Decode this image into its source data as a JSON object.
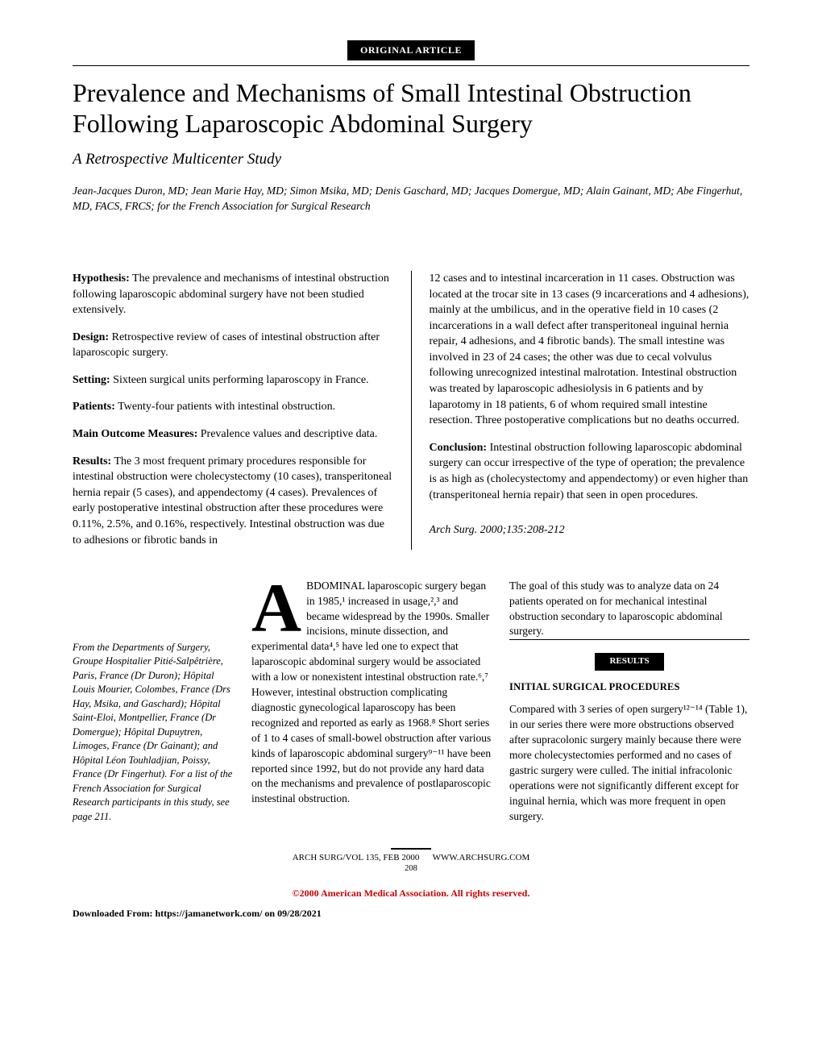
{
  "badges": {
    "section": "ORIGINAL ARTICLE",
    "results": "RESULTS"
  },
  "title": "Prevalence and Mechanisms of Small Intestinal Obstruction Following Laparoscopic Abdominal Surgery",
  "subtitle": "A Retrospective Multicenter Study",
  "authors": "Jean-Jacques Duron, MD; Jean Marie Hay, MD; Simon Msika, MD; Denis Gaschard, MD; Jacques Domergue, MD; Alain Gainant, MD; Abe Fingerhut, MD, FACS, FRCS; for the French Association for Surgical Research",
  "abstract": {
    "left": {
      "hypothesis_label": "Hypothesis:",
      "hypothesis": " The prevalence and mechanisms of intestinal obstruction following laparoscopic abdominal surgery have not been studied extensively.",
      "design_label": "Design:",
      "design": " Retrospective review of cases of intestinal obstruction after laparoscopic surgery.",
      "setting_label": "Setting:",
      "setting": " Sixteen surgical units performing laparoscopy in France.",
      "patients_label": "Patients:",
      "patients": " Twenty-four patients with intestinal obstruction.",
      "outcome_label": "Main Outcome Measures:",
      "outcome": " Prevalence values and descriptive data.",
      "results_label": "Results:",
      "results": " The 3 most frequent primary procedures responsible for intestinal obstruction were cholecystectomy (10 cases), transperitoneal hernia repair (5 cases), and appendectomy (4 cases). Prevalences of early postoperative intestinal obstruction after these procedures were 0.11%, 2.5%, and 0.16%, respectively. Intestinal obstruction was due to adhesions or fibrotic bands in"
    },
    "right": {
      "continuation": "12 cases and to intestinal incarceration in 11 cases. Obstruction was located at the trocar site in 13 cases (9 incarcerations and 4 adhesions), mainly at the umbilicus, and in the operative field in 10 cases (2 incarcerations in a wall defect after transperitoneal inguinal hernia repair, 4 adhesions, and 4 fibrotic bands). The small intestine was involved in 23 of 24 cases; the other was due to cecal volvulus following unrecognized intestinal malrotation. Intestinal obstruction was treated by laparoscopic adhesiolysis in 6 patients and by laparotomy in 18 patients, 6 of whom required small intestine resection. Three postoperative complications but no deaths occurred.",
      "conclusion_label": "Conclusion:",
      "conclusion": " Intestinal obstruction following laparoscopic abdominal surgery can occur irrespective of the type of operation; the prevalence is as high as (cholecystectomy and appendectomy) or even higher than (transperitoneal hernia repair) that seen in open procedures.",
      "citation": "Arch Surg. 2000;135:208-212"
    }
  },
  "affiliations": "From the Departments of Surgery, Groupe Hospitalier Pitié-Salpêtrière, Paris, France (Dr Duron); Hôpital Louis Mourier, Colombes, France (Drs Hay, Msika, and Gaschard); Hôpital Saint-Eloi, Montpellier, France (Dr Domergue); Hôpital Dupuytren, Limoges, France (Dr Gainant); and Hôpital Léon Touhladjian, Poissy, France (Dr Fingerhut). For a list of the French Association for Surgical Research participants in this study, see page 211.",
  "intro": {
    "dropcap": "A",
    "para": "BDOMINAL laparoscopic surgery began in 1985,¹ increased in usage,²,³ and became widespread by the 1990s. Smaller incisions, minute dissection, and experimental data⁴,⁵ have led one to expect that laparoscopic abdominal surgery would be associated with a low or nonexistent intestinal obstruction rate.⁶,⁷ However, intestinal obstruction complicating diagnostic gynecological laparoscopy has been recognized and reported as early as 1968.⁸ Short series of 1 to 4 cases of small-bowel obstruction after various kinds of laparoscopic abdominal surgery⁹⁻¹¹ have been reported since 1992, but do not provide any hard data on the mechanisms and prevalence of postlaparoscopic instestinal obstruction."
  },
  "right_body": {
    "goal": "The goal of this study was to analyze data on 24 patients operated on for mechanical intestinal obstruction secondary to laparoscopic abdominal surgery.",
    "subhead": "INITIAL SURGICAL PROCEDURES",
    "para": "Compared with 3 series of open surgery¹²⁻¹⁴ (Table 1), in our series there were more obstructions observed after supracolonic surgery mainly because there were more cholecystectomies performed and no cases of gastric surgery were culled. The initial infracolonic operations were not significantly different except for inguinal hernia, which was more frequent in open surgery."
  },
  "footer": {
    "line1a": "ARCH SURG/VOL 135, FEB 2000",
    "line1b": "WWW.ARCHSURG.COM",
    "pagenum": "208"
  },
  "copyright": "©2000 American Medical Association. All rights reserved.",
  "download": "Downloaded From: https://jamanetwork.com/ on 09/28/2021"
}
